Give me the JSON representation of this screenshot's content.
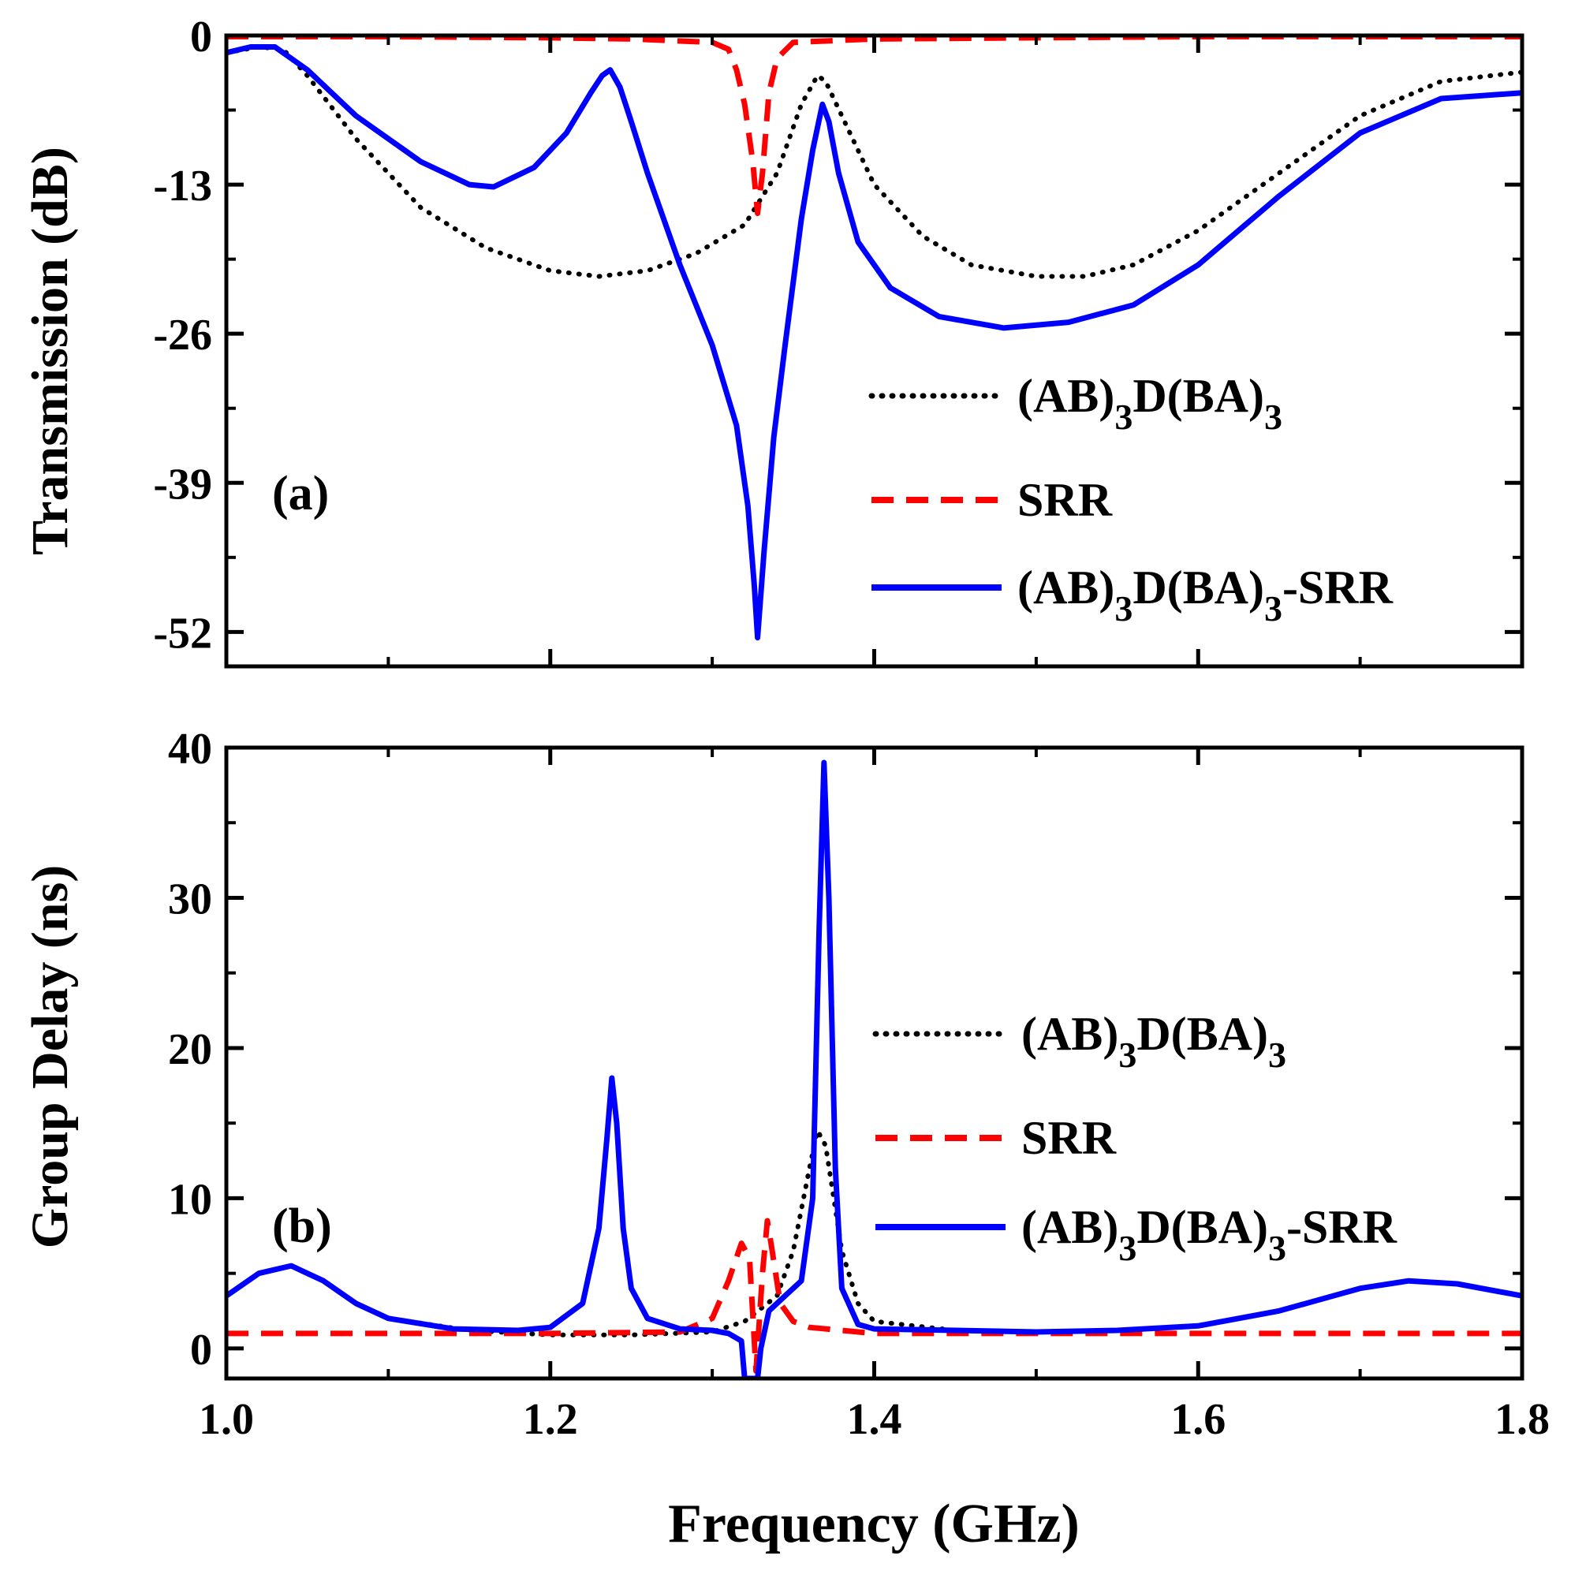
{
  "colors": {
    "frame": "#000000",
    "dotted": "#000000",
    "dashed": "#ff0000",
    "solid": "#0000ff"
  },
  "xaxis": {
    "label": "Frequency (GHz)",
    "range": [
      1.0,
      1.8
    ],
    "ticks": [
      1.0,
      1.2,
      1.4,
      1.6,
      1.8
    ],
    "tick_labels": [
      "1.0",
      "1.2",
      "1.4",
      "1.6",
      "1.8"
    ]
  },
  "legend": {
    "dotted_main": "(AB)",
    "dotted_sub1": "3",
    "dotted_mid": "D(BA)",
    "dotted_sub2": "3",
    "dashed": "SRR",
    "solid_main": "(AB)",
    "solid_sub1": "3",
    "solid_mid": "D(BA)",
    "solid_sub2": "3",
    "solid_tail": "-SRR"
  },
  "chart_data": [
    {
      "type": "line",
      "panel_label": "(a)",
      "title": "",
      "xlabel": "",
      "ylabel": "Transmission (dB)",
      "xlim": [
        1.0,
        1.8
      ],
      "ylim": [
        -55,
        0
      ],
      "yticks": [
        0,
        -13,
        -26,
        -39,
        -52
      ],
      "ytick_labels": [
        "0",
        "-13",
        "-26",
        "-39",
        "-52"
      ],
      "series": [
        {
          "name": "(AB)3D(BA)3",
          "style": "dotted",
          "x": [
            1.0,
            1.02,
            1.035,
            1.05,
            1.08,
            1.12,
            1.16,
            1.2,
            1.23,
            1.26,
            1.29,
            1.32,
            1.34,
            1.355,
            1.365,
            1.37,
            1.38,
            1.4,
            1.43,
            1.46,
            1.5,
            1.53,
            1.56,
            1.6,
            1.65,
            1.7,
            1.75,
            1.8
          ],
          "y": [
            -1.5,
            -1.0,
            -1.2,
            -3.5,
            -9.0,
            -15.0,
            -18.5,
            -20.5,
            -21.0,
            -20.5,
            -19.0,
            -16.5,
            -12.0,
            -6.0,
            -3.5,
            -4.0,
            -7.0,
            -13.0,
            -17.5,
            -20.0,
            -21.0,
            -21.0,
            -20.0,
            -17.0,
            -12.0,
            -7.0,
            -4.0,
            -3.2
          ]
        },
        {
          "name": "SRR",
          "style": "dashed",
          "x": [
            1.0,
            1.1,
            1.2,
            1.25,
            1.3,
            1.31,
            1.315,
            1.32,
            1.325,
            1.328,
            1.331,
            1.335,
            1.34,
            1.35,
            1.4,
            1.5,
            1.6,
            1.7,
            1.8
          ],
          "y": [
            -0.1,
            -0.1,
            -0.2,
            -0.3,
            -0.6,
            -1.2,
            -3.0,
            -6.0,
            -11.0,
            -15.5,
            -12.0,
            -5.0,
            -2.0,
            -0.6,
            -0.3,
            -0.2,
            -0.1,
            -0.1,
            -0.1
          ]
        },
        {
          "name": "(AB)3D(BA)3-SRR",
          "style": "solid",
          "x": [
            1.0,
            1.015,
            1.03,
            1.05,
            1.08,
            1.12,
            1.15,
            1.165,
            1.19,
            1.21,
            1.225,
            1.232,
            1.237,
            1.243,
            1.25,
            1.26,
            1.28,
            1.3,
            1.315,
            1.322,
            1.326,
            1.328,
            1.332,
            1.338,
            1.345,
            1.355,
            1.362,
            1.368,
            1.372,
            1.378,
            1.39,
            1.41,
            1.44,
            1.48,
            1.52,
            1.56,
            1.6,
            1.65,
            1.7,
            1.75,
            1.8
          ],
          "y": [
            -1.5,
            -1.0,
            -1.0,
            -3.0,
            -7.0,
            -11.0,
            -13.0,
            -13.2,
            -11.5,
            -8.5,
            -5.0,
            -3.5,
            -3.0,
            -4.5,
            -7.5,
            -12.0,
            -20.0,
            -27.0,
            -34.0,
            -41.0,
            -48.0,
            -52.5,
            -45.0,
            -35.0,
            -27.0,
            -16.0,
            -10.0,
            -6.0,
            -7.5,
            -12.0,
            -18.0,
            -22.0,
            -24.5,
            -25.5,
            -25.0,
            -23.5,
            -20.0,
            -14.0,
            -8.5,
            -5.5,
            -5.0
          ]
        }
      ]
    },
    {
      "type": "line",
      "panel_label": "(b)",
      "title": "",
      "xlabel": "Frequency (GHz)",
      "ylabel": "Group Delay (ns)",
      "xlim": [
        1.0,
        1.8
      ],
      "ylim": [
        -2,
        40
      ],
      "yticks": [
        0,
        10,
        20,
        30,
        40
      ],
      "ytick_labels": [
        "0",
        "10",
        "20",
        "30",
        "40"
      ],
      "series": [
        {
          "name": "(AB)3D(BA)3",
          "style": "dotted",
          "x": [
            1.0,
            1.02,
            1.04,
            1.06,
            1.08,
            1.1,
            1.15,
            1.2,
            1.25,
            1.3,
            1.32,
            1.34,
            1.35,
            1.36,
            1.365,
            1.37,
            1.375,
            1.38,
            1.39,
            1.4,
            1.45,
            1.5,
            1.55,
            1.6,
            1.65,
            1.7,
            1.73,
            1.76,
            1.8
          ],
          "y": [
            3.5,
            5.0,
            5.5,
            4.5,
            3.0,
            2.0,
            1.2,
            0.9,
            0.9,
            1.1,
            1.8,
            3.5,
            6.5,
            12.0,
            14.5,
            13.5,
            10.0,
            6.5,
            3.0,
            1.8,
            1.2,
            1.1,
            1.2,
            1.5,
            2.5,
            4.0,
            4.5,
            4.3,
            3.5
          ]
        },
        {
          "name": "SRR",
          "style": "dashed",
          "x": [
            1.0,
            1.2,
            1.28,
            1.3,
            1.31,
            1.318,
            1.323,
            1.327,
            1.331,
            1.334,
            1.337,
            1.342,
            1.35,
            1.36,
            1.38,
            1.4,
            1.6,
            1.8
          ],
          "y": [
            1.0,
            1.0,
            1.1,
            2.0,
            4.5,
            7.0,
            6.0,
            -1.5,
            5.0,
            8.5,
            6.5,
            3.0,
            1.8,
            1.4,
            1.2,
            1.0,
            1.0,
            1.0
          ]
        },
        {
          "name": "(AB)3D(BA)3-SRR",
          "style": "solid",
          "x": [
            1.0,
            1.02,
            1.04,
            1.06,
            1.08,
            1.1,
            1.14,
            1.18,
            1.2,
            1.22,
            1.23,
            1.235,
            1.238,
            1.241,
            1.245,
            1.25,
            1.26,
            1.28,
            1.3,
            1.31,
            1.318,
            1.32,
            1.322,
            1.328,
            1.33,
            1.335,
            1.345,
            1.355,
            1.362,
            1.366,
            1.369,
            1.372,
            1.376,
            1.38,
            1.39,
            1.4,
            1.45,
            1.5,
            1.55,
            1.6,
            1.65,
            1.7,
            1.73,
            1.76,
            1.8
          ],
          "y": [
            3.5,
            5.0,
            5.5,
            4.5,
            3.0,
            2.0,
            1.3,
            1.2,
            1.4,
            3.0,
            8.0,
            14.0,
            18.0,
            15.0,
            8.0,
            4.0,
            2.0,
            1.3,
            1.2,
            1.0,
            0.5,
            -2.0,
            -2.0,
            -2.0,
            0.0,
            2.5,
            3.5,
            4.5,
            10.0,
            28.0,
            39.0,
            30.0,
            12.0,
            4.0,
            1.6,
            1.3,
            1.2,
            1.1,
            1.2,
            1.5,
            2.5,
            4.0,
            4.5,
            4.3,
            3.5
          ]
        }
      ]
    }
  ]
}
